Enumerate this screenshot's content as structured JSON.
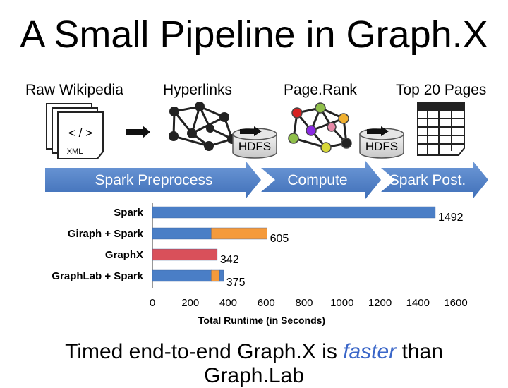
{
  "title": "A Small Pipeline in Graph.X",
  "stages": {
    "raw": "Raw Wikipedia",
    "hyperlinks": "Hyperlinks",
    "pagerank": "Page.Rank",
    "top20": "Top 20 Pages"
  },
  "doc_icon": {
    "tag": "< / >",
    "badge": "XML"
  },
  "storage": [
    "HDFS",
    "HDFS"
  ],
  "phases": [
    "Spark Preprocess",
    "Compute",
    "Spark Post."
  ],
  "colors": {
    "arrow_blue": "#4f7fc6",
    "spark_blue": "#4a7ec6",
    "orange": "#f59a3b",
    "graphx_red": "#d9505a",
    "pagerank_nodes": [
      "#d62222",
      "#8fbf4a",
      "#222222",
      "#8a2be2",
      "#e88aa8",
      "#f0b030"
    ]
  },
  "chart_data": {
    "type": "bar",
    "orientation": "horizontal",
    "stacked": true,
    "categories": [
      "Spark",
      "Giraph + Spark",
      "GraphX",
      "GraphLab + Spark"
    ],
    "totals": [
      1492,
      605,
      342,
      375
    ],
    "segments": [
      [
        {
          "value": 1492,
          "color": "#4a7ec6"
        }
      ],
      [
        {
          "value": 310,
          "color": "#4a7ec6"
        },
        {
          "value": 295,
          "color": "#f59a3b"
        }
      ],
      [
        {
          "value": 342,
          "color": "#d9505a"
        }
      ],
      [
        {
          "value": 310,
          "color": "#4a7ec6"
        },
        {
          "value": 45,
          "color": "#f59a3b"
        },
        {
          "value": 20,
          "color": "#4a7ec6"
        }
      ]
    ],
    "xlim": [
      0,
      1600
    ],
    "ticks": [
      0,
      200,
      400,
      600,
      800,
      1000,
      1200,
      1400,
      1600
    ],
    "xlabel": "Total Runtime (in Seconds)",
    "grid": false
  },
  "caption": {
    "pre": "Timed end-to-end Graph.X is ",
    "em": "faster",
    "post": " than",
    "line2": "Graph.Lab"
  }
}
